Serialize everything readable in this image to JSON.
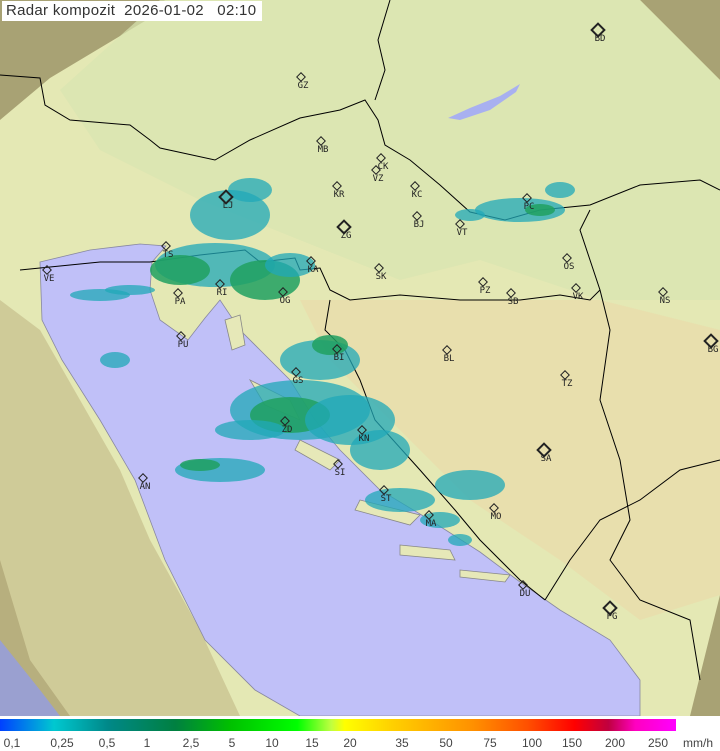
{
  "title": "Radar kompozit  2026-01-02   02:10",
  "colors": {
    "sea": "#c0c0f8",
    "land": "#e6eab8",
    "outside_coverage": "#a8a274",
    "rain_light": "#20a8b8",
    "rain_moderate": "#20a060",
    "border": "#000000"
  },
  "cities": [
    {
      "code": "GZ",
      "major": false
    },
    {
      "code": "BD",
      "major": true
    },
    {
      "code": "MB",
      "major": false
    },
    {
      "code": "CK",
      "major": false
    },
    {
      "code": "VZ",
      "major": false
    },
    {
      "code": "KR",
      "major": false
    },
    {
      "code": "KC",
      "major": false
    },
    {
      "code": "ZG",
      "major": true
    },
    {
      "code": "BJ",
      "major": false
    },
    {
      "code": "VT",
      "major": false
    },
    {
      "code": "PC",
      "major": false
    },
    {
      "code": "SK",
      "major": false
    },
    {
      "code": "PZ",
      "major": false
    },
    {
      "code": "SB",
      "major": false
    },
    {
      "code": "OS",
      "major": false
    },
    {
      "code": "VK",
      "major": false
    },
    {
      "code": "NS",
      "major": false
    },
    {
      "code": "BG",
      "major": true
    },
    {
      "code": "BL",
      "major": false
    },
    {
      "code": "TZ",
      "major": false
    },
    {
      "code": "SA",
      "major": true
    },
    {
      "code": "MO",
      "major": false
    },
    {
      "code": "DU",
      "major": false
    },
    {
      "code": "PG",
      "major": true
    },
    {
      "code": "VE",
      "major": false
    },
    {
      "code": "PU",
      "major": false
    },
    {
      "code": "AN",
      "major": false
    },
    {
      "code": "TS",
      "major": false
    },
    {
      "code": "LJ",
      "major": true
    },
    {
      "code": "RI",
      "major": false
    },
    {
      "code": "PA",
      "major": false
    },
    {
      "code": "KA",
      "major": false
    },
    {
      "code": "OG",
      "major": false
    },
    {
      "code": "GS",
      "major": false
    },
    {
      "code": "ZD",
      "major": false
    },
    {
      "code": "KN",
      "major": false
    },
    {
      "code": "SI",
      "major": false
    },
    {
      "code": "ST",
      "major": false
    },
    {
      "code": "MA",
      "major": false
    },
    {
      "code": "BI",
      "major": false
    }
  ],
  "legend": {
    "labels": [
      "0,1",
      "0,25",
      "0,5",
      "1",
      "2,5",
      "5",
      "10",
      "15",
      "20",
      "35",
      "50",
      "75",
      "100",
      "150",
      "200",
      "250"
    ],
    "unit": "mm/h"
  }
}
